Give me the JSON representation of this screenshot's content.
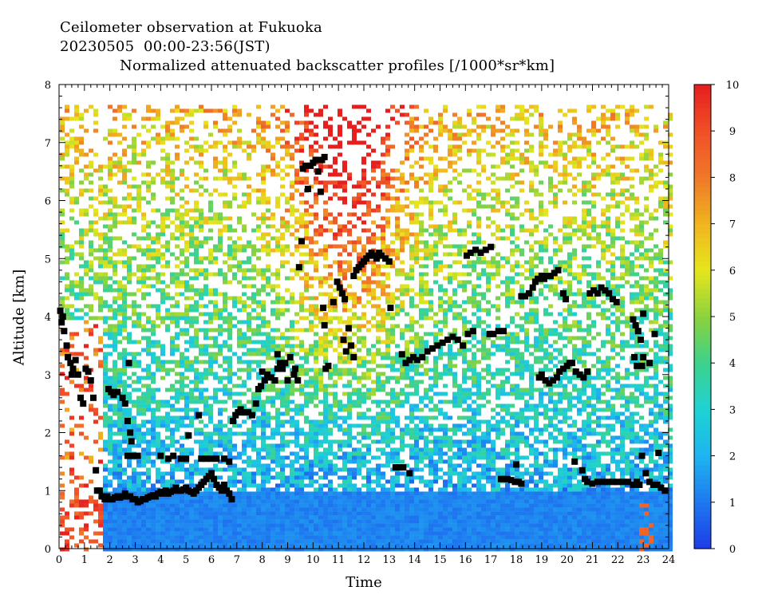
{
  "chart_data": {
    "type": "heatmap",
    "title_lines": [
      "Ceilometer observation at Fukuoka",
      "20230505  00:00-23:56(JST)",
      "Normalized attenuated backscatter profiles [/1000*sr*km]"
    ],
    "xlabel": "Time",
    "ylabel": "Altitude [km]",
    "xlim": [
      0,
      24
    ],
    "ylim": [
      0,
      8
    ],
    "x_ticks": [
      "0",
      "1",
      "2",
      "3",
      "4",
      "5",
      "6",
      "7",
      "8",
      "9",
      "10",
      "11",
      "12",
      "13",
      "14",
      "15",
      "16",
      "17",
      "18",
      "19",
      "20",
      "21",
      "22",
      "23",
      "24"
    ],
    "y_ticks": [
      "0",
      "1",
      "2",
      "3",
      "4",
      "5",
      "6",
      "7",
      "8"
    ],
    "colorbar": {
      "range": [
        0,
        10
      ],
      "ticks": [
        "0",
        "1",
        "2",
        "3",
        "4",
        "5",
        "6",
        "7",
        "8",
        "9",
        "10"
      ],
      "colors": [
        "#1e3ce6",
        "#1e78f0",
        "#1eb4f0",
        "#1ed2d2",
        "#3cd28c",
        "#8cd23c",
        "#e6e61e",
        "#f0b41e",
        "#f07828",
        "#f05028",
        "#e61e1e"
      ]
    },
    "data_top_km": 7.65,
    "cloud_base_points": [
      [
        0.05,
        4.1
      ],
      [
        0.1,
        3.9
      ],
      [
        0.15,
        4.0
      ],
      [
        0.2,
        3.75
      ],
      [
        0.3,
        3.5
      ],
      [
        0.35,
        3.3
      ],
      [
        0.45,
        3.2
      ],
      [
        0.5,
        3.0
      ],
      [
        0.55,
        3.1
      ],
      [
        0.65,
        3.25
      ],
      [
        0.75,
        3.0
      ],
      [
        0.85,
        2.6
      ],
      [
        0.95,
        2.5
      ],
      [
        1.05,
        3.1
      ],
      [
        1.15,
        3.05
      ],
      [
        1.25,
        2.9
      ],
      [
        1.35,
        2.6
      ],
      [
        1.45,
        1.35
      ],
      [
        1.5,
        1.0
      ],
      [
        1.6,
        1.0
      ],
      [
        1.7,
        0.9
      ],
      [
        1.8,
        0.85
      ],
      [
        1.9,
        0.9
      ],
      [
        2.0,
        0.85
      ],
      [
        2.1,
        0.85
      ],
      [
        2.2,
        0.88
      ],
      [
        2.3,
        0.9
      ],
      [
        2.4,
        0.88
      ],
      [
        2.5,
        0.9
      ],
      [
        2.6,
        0.95
      ],
      [
        2.7,
        0.9
      ],
      [
        2.8,
        0.9
      ],
      [
        2.9,
        0.85
      ],
      [
        3.0,
        0.85
      ],
      [
        3.1,
        0.8
      ],
      [
        3.2,
        0.82
      ],
      [
        3.3,
        0.85
      ],
      [
        3.4,
        0.85
      ],
      [
        3.5,
        0.88
      ],
      [
        3.6,
        0.9
      ],
      [
        3.7,
        0.92
      ],
      [
        3.8,
        0.9
      ],
      [
        3.9,
        0.95
      ],
      [
        4.0,
        0.98
      ],
      [
        4.1,
        0.95
      ],
      [
        4.2,
        1.0
      ],
      [
        4.3,
        0.95
      ],
      [
        4.4,
        0.98
      ],
      [
        4.5,
        1.0
      ],
      [
        4.6,
        1.05
      ],
      [
        4.7,
        1.0
      ],
      [
        4.8,
        1.0
      ],
      [
        4.9,
        1.02
      ],
      [
        5.0,
        1.05
      ],
      [
        5.1,
        1.0
      ],
      [
        5.2,
        0.98
      ],
      [
        5.3,
        0.95
      ],
      [
        5.4,
        1.0
      ],
      [
        5.5,
        1.05
      ],
      [
        5.6,
        1.1
      ],
      [
        5.7,
        1.15
      ],
      [
        5.8,
        1.2
      ],
      [
        5.9,
        1.25
      ],
      [
        6.0,
        1.3
      ],
      [
        6.1,
        1.2
      ],
      [
        6.2,
        1.1
      ],
      [
        6.3,
        1.05
      ],
      [
        6.4,
        1.0
      ],
      [
        6.5,
        1.1
      ],
      [
        6.6,
        1.0
      ],
      [
        6.7,
        0.95
      ],
      [
        6.8,
        0.85
      ],
      [
        1.95,
        2.75
      ],
      [
        2.05,
        2.7
      ],
      [
        2.15,
        2.65
      ],
      [
        2.3,
        2.7
      ],
      [
        2.5,
        2.6
      ],
      [
        2.6,
        2.5
      ],
      [
        2.7,
        2.2
      ],
      [
        2.75,
        3.2
      ],
      [
        2.8,
        2.0
      ],
      [
        2.85,
        1.85
      ],
      [
        2.7,
        1.6
      ],
      [
        2.9,
        1.6
      ],
      [
        3.1,
        1.6
      ],
      [
        4.0,
        1.6
      ],
      [
        4.3,
        1.55
      ],
      [
        4.5,
        1.6
      ],
      [
        4.8,
        1.55
      ],
      [
        5.0,
        1.55
      ],
      [
        5.6,
        1.55
      ],
      [
        5.8,
        1.55
      ],
      [
        6.0,
        1.55
      ],
      [
        6.2,
        1.55
      ],
      [
        6.5,
        1.55
      ],
      [
        6.7,
        1.5
      ],
      [
        5.1,
        1.95
      ],
      [
        5.5,
        2.3
      ],
      [
        6.85,
        2.2
      ],
      [
        6.95,
        2.3
      ],
      [
        7.05,
        2.35
      ],
      [
        7.15,
        2.4
      ],
      [
        7.3,
        2.35
      ],
      [
        7.45,
        2.35
      ],
      [
        7.6,
        2.3
      ],
      [
        7.75,
        2.5
      ],
      [
        7.85,
        2.75
      ],
      [
        7.95,
        2.8
      ],
      [
        8.1,
        2.9
      ],
      [
        8.2,
        3.0
      ],
      [
        8.35,
        2.95
      ],
      [
        8.5,
        2.9
      ],
      [
        8.6,
        3.1
      ],
      [
        8.7,
        3.2
      ],
      [
        8.8,
        3.1
      ],
      [
        8.9,
        3.2
      ],
      [
        9.0,
        2.9
      ],
      [
        9.1,
        3.3
      ],
      [
        9.25,
        3.0
      ],
      [
        9.4,
        2.9
      ],
      [
        9.3,
        3.1
      ],
      [
        8.6,
        3.35
      ],
      [
        8.0,
        3.05
      ],
      [
        9.45,
        4.85
      ],
      [
        9.55,
        5.3
      ],
      [
        9.6,
        6.55
      ],
      [
        9.7,
        6.6
      ],
      [
        9.8,
        6.2
      ],
      [
        9.9,
        6.6
      ],
      [
        10.0,
        6.65
      ],
      [
        10.1,
        6.7
      ],
      [
        10.2,
        6.5
      ],
      [
        10.3,
        6.15
      ],
      [
        10.35,
        6.7
      ],
      [
        10.45,
        6.75
      ],
      [
        10.4,
        4.15
      ],
      [
        10.5,
        3.1
      ],
      [
        10.6,
        3.15
      ],
      [
        10.8,
        4.25
      ],
      [
        10.95,
        4.6
      ],
      [
        11.05,
        4.5
      ],
      [
        11.15,
        4.4
      ],
      [
        11.25,
        4.3
      ],
      [
        10.45,
        3.85
      ],
      [
        11.2,
        3.6
      ],
      [
        11.4,
        3.8
      ],
      [
        11.5,
        3.5
      ],
      [
        11.3,
        3.4
      ],
      [
        11.6,
        3.3
      ],
      [
        11.6,
        4.7
      ],
      [
        11.7,
        4.8
      ],
      [
        11.8,
        4.85
      ],
      [
        11.9,
        4.9
      ],
      [
        12.0,
        4.95
      ],
      [
        12.1,
        5.0
      ],
      [
        12.2,
        5.05
      ],
      [
        12.3,
        5.1
      ],
      [
        12.4,
        5.05
      ],
      [
        12.5,
        5.0
      ],
      [
        12.7,
        5.05
      ],
      [
        12.85,
        5.0
      ],
      [
        13.0,
        4.95
      ],
      [
        12.6,
        5.1
      ],
      [
        13.05,
        4.15
      ],
      [
        13.25,
        1.4
      ],
      [
        13.4,
        1.4
      ],
      [
        13.55,
        1.4
      ],
      [
        13.8,
        1.3
      ],
      [
        13.5,
        3.35
      ],
      [
        13.65,
        3.2
      ],
      [
        13.8,
        3.25
      ],
      [
        13.95,
        3.3
      ],
      [
        14.1,
        3.25
      ],
      [
        14.3,
        3.3
      ],
      [
        14.5,
        3.4
      ],
      [
        14.7,
        3.45
      ],
      [
        14.9,
        3.5
      ],
      [
        15.1,
        3.55
      ],
      [
        15.3,
        3.6
      ],
      [
        15.5,
        3.65
      ],
      [
        15.7,
        3.6
      ],
      [
        15.9,
        3.5
      ],
      [
        16.1,
        3.7
      ],
      [
        16.3,
        3.75
      ],
      [
        16.05,
        5.05
      ],
      [
        16.2,
        5.1
      ],
      [
        16.4,
        5.15
      ],
      [
        16.6,
        5.1
      ],
      [
        16.8,
        5.15
      ],
      [
        17.0,
        5.2
      ],
      [
        16.95,
        3.7
      ],
      [
        17.1,
        3.7
      ],
      [
        17.3,
        3.75
      ],
      [
        17.5,
        3.75
      ],
      [
        17.4,
        1.2
      ],
      [
        17.5,
        1.2
      ],
      [
        17.65,
        1.2
      ],
      [
        17.8,
        1.18
      ],
      [
        17.95,
        1.15
      ],
      [
        18.1,
        1.15
      ],
      [
        18.2,
        1.12
      ],
      [
        18.0,
        1.45
      ],
      [
        18.2,
        4.35
      ],
      [
        18.35,
        4.35
      ],
      [
        18.5,
        4.4
      ],
      [
        18.65,
        4.5
      ],
      [
        18.75,
        4.6
      ],
      [
        18.85,
        4.65
      ],
      [
        19.0,
        4.7
      ],
      [
        19.1,
        4.65
      ],
      [
        19.2,
        4.7
      ],
      [
        19.35,
        4.7
      ],
      [
        19.5,
        4.75
      ],
      [
        19.65,
        4.8
      ],
      [
        19.85,
        4.4
      ],
      [
        19.95,
        4.3
      ],
      [
        18.9,
        2.95
      ],
      [
        19.0,
        3.0
      ],
      [
        19.15,
        2.9
      ],
      [
        19.3,
        2.85
      ],
      [
        19.45,
        2.9
      ],
      [
        19.6,
        2.95
      ],
      [
        19.7,
        3.05
      ],
      [
        19.85,
        3.1
      ],
      [
        20.0,
        3.15
      ],
      [
        20.2,
        3.2
      ],
      [
        20.35,
        3.05
      ],
      [
        20.5,
        3.0
      ],
      [
        20.65,
        2.95
      ],
      [
        20.8,
        3.05
      ],
      [
        20.1,
        3.2
      ],
      [
        20.3,
        1.5
      ],
      [
        20.6,
        1.35
      ],
      [
        20.7,
        1.2
      ],
      [
        20.8,
        1.15
      ],
      [
        21.0,
        1.12
      ],
      [
        21.2,
        1.15
      ],
      [
        21.4,
        1.15
      ],
      [
        21.6,
        1.15
      ],
      [
        21.8,
        1.15
      ],
      [
        22.0,
        1.15
      ],
      [
        22.2,
        1.15
      ],
      [
        22.4,
        1.15
      ],
      [
        22.6,
        1.1
      ],
      [
        22.75,
        1.15
      ],
      [
        20.9,
        4.4
      ],
      [
        21.05,
        4.45
      ],
      [
        21.2,
        4.4
      ],
      [
        21.35,
        4.5
      ],
      [
        21.5,
        4.45
      ],
      [
        21.65,
        4.4
      ],
      [
        21.8,
        4.3
      ],
      [
        21.95,
        4.25
      ],
      [
        22.6,
        3.95
      ],
      [
        22.7,
        3.85
      ],
      [
        22.8,
        3.75
      ],
      [
        22.9,
        3.6
      ],
      [
        23.0,
        3.3
      ],
      [
        22.95,
        3.15
      ],
      [
        22.65,
        3.3
      ],
      [
        22.75,
        3.15
      ],
      [
        23.0,
        4.05
      ],
      [
        23.25,
        3.2
      ],
      [
        23.45,
        3.7
      ],
      [
        22.95,
        1.6
      ],
      [
        23.1,
        1.3
      ],
      [
        23.25,
        1.15
      ],
      [
        23.4,
        1.1
      ],
      [
        23.55,
        1.1
      ],
      [
        23.7,
        1.05
      ],
      [
        23.85,
        1.0
      ],
      [
        23.6,
        1.65
      ],
      [
        22.85,
        1.1
      ]
    ]
  }
}
